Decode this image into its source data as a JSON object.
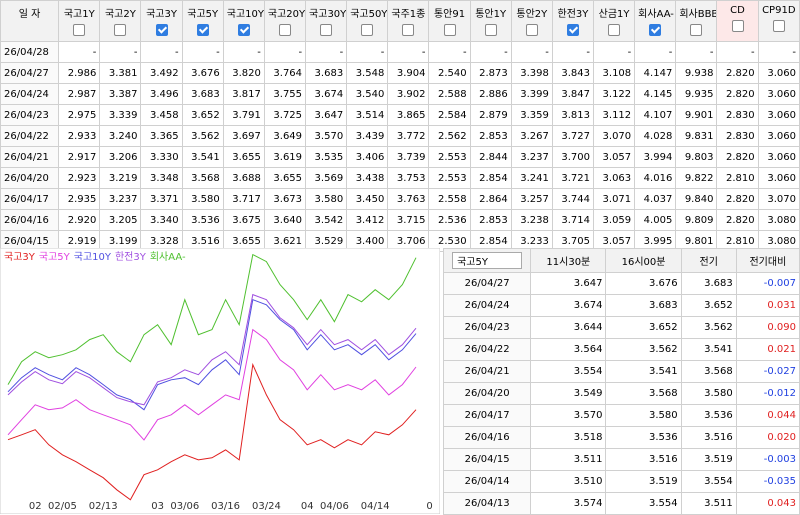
{
  "rate_table": {
    "columns": [
      {
        "label": "일 자"
      },
      {
        "label": "국고1Y",
        "checked": false
      },
      {
        "label": "국고2Y",
        "checked": false
      },
      {
        "label": "국고3Y",
        "checked": true
      },
      {
        "label": "국고5Y",
        "checked": true
      },
      {
        "label": "국고10Y",
        "checked": true
      },
      {
        "label": "국고20Y",
        "checked": false
      },
      {
        "label": "국고30Y",
        "checked": false
      },
      {
        "label": "국고50Y",
        "checked": false
      },
      {
        "label": "국주1종",
        "checked": false
      },
      {
        "label": "통안91",
        "checked": false
      },
      {
        "label": "통안1Y",
        "checked": false
      },
      {
        "label": "통안2Y",
        "checked": false
      },
      {
        "label": "한전3Y",
        "checked": true
      },
      {
        "label": "산금1Y",
        "checked": false
      },
      {
        "label": "회사AA-",
        "checked": true
      },
      {
        "label": "회사BBB-",
        "checked": false
      },
      {
        "label": "CD",
        "checked": false
      },
      {
        "label": "CP91D",
        "checked": false
      }
    ],
    "rows": [
      [
        "26/04/28",
        "-",
        "-",
        "-",
        "-",
        "-",
        "-",
        "-",
        "-",
        "-",
        "-",
        "-",
        "-",
        "-",
        "-",
        "-",
        "-",
        "-",
        "-"
      ],
      [
        "26/04/27",
        "2.986",
        "3.381",
        "3.492",
        "3.676",
        "3.820",
        "3.764",
        "3.683",
        "3.548",
        "3.904",
        "2.540",
        "2.873",
        "3.398",
        "3.843",
        "3.108",
        "4.147",
        "9.938",
        "2.820",
        "3.060"
      ],
      [
        "26/04/24",
        "2.987",
        "3.387",
        "3.496",
        "3.683",
        "3.817",
        "3.755",
        "3.674",
        "3.540",
        "3.902",
        "2.588",
        "2.886",
        "3.399",
        "3.847",
        "3.122",
        "4.145",
        "9.935",
        "2.820",
        "3.060"
      ],
      [
        "26/04/23",
        "2.975",
        "3.339",
        "3.458",
        "3.652",
        "3.791",
        "3.725",
        "3.647",
        "3.514",
        "3.865",
        "2.584",
        "2.879",
        "3.359",
        "3.813",
        "3.112",
        "4.107",
        "9.901",
        "2.830",
        "3.060"
      ],
      [
        "26/04/22",
        "2.933",
        "3.240",
        "3.365",
        "3.562",
        "3.697",
        "3.649",
        "3.570",
        "3.439",
        "3.772",
        "2.562",
        "2.853",
        "3.267",
        "3.727",
        "3.070",
        "4.028",
        "9.831",
        "2.830",
        "3.060"
      ],
      [
        "26/04/21",
        "2.917",
        "3.206",
        "3.330",
        "3.541",
        "3.655",
        "3.619",
        "3.535",
        "3.406",
        "3.739",
        "2.553",
        "2.844",
        "3.237",
        "3.700",
        "3.057",
        "3.994",
        "9.803",
        "2.820",
        "3.060"
      ],
      [
        "26/04/20",
        "2.923",
        "3.219",
        "3.348",
        "3.568",
        "3.688",
        "3.655",
        "3.569",
        "3.438",
        "3.753",
        "2.553",
        "2.854",
        "3.241",
        "3.721",
        "3.063",
        "4.016",
        "9.822",
        "2.810",
        "3.060"
      ],
      [
        "26/04/17",
        "2.935",
        "3.237",
        "3.371",
        "3.580",
        "3.717",
        "3.673",
        "3.580",
        "3.450",
        "3.763",
        "2.558",
        "2.864",
        "3.257",
        "3.744",
        "3.071",
        "4.037",
        "9.840",
        "2.820",
        "3.070"
      ],
      [
        "26/04/16",
        "2.920",
        "3.205",
        "3.340",
        "3.536",
        "3.675",
        "3.640",
        "3.542",
        "3.412",
        "3.715",
        "2.536",
        "2.853",
        "3.238",
        "3.714",
        "3.059",
        "4.005",
        "9.809",
        "2.820",
        "3.080"
      ],
      [
        "26/04/15",
        "2.919",
        "3.199",
        "3.328",
        "3.516",
        "3.655",
        "3.621",
        "3.529",
        "3.400",
        "3.706",
        "2.530",
        "2.854",
        "3.233",
        "3.705",
        "3.057",
        "3.995",
        "9.801",
        "2.810",
        "3.080"
      ]
    ]
  },
  "chart_data": {
    "type": "line",
    "ylim": [
      3.06,
      4.18
    ],
    "categories": [
      null,
      null,
      "02",
      null,
      "02/05",
      null,
      null,
      "02/13",
      null,
      null,
      null,
      "03",
      null,
      "03/06",
      null,
      null,
      "03/16",
      null,
      null,
      "03/24",
      null,
      null,
      "04",
      null,
      "04/06",
      null,
      null,
      "04/14",
      null,
      null,
      null,
      "0"
    ],
    "series": [
      {
        "name": "국고3Y",
        "color": "#e02020",
        "values": [
          3.363,
          3.384,
          3.406,
          3.341,
          3.298,
          3.268,
          3.233,
          3.199,
          3.147,
          3.104,
          3.212,
          3.233,
          3.268,
          3.298,
          3.276,
          3.285,
          3.319,
          3.276,
          3.686,
          3.556,
          3.449,
          3.406,
          3.341,
          3.363,
          3.328,
          3.363,
          3.341,
          3.397,
          3.384,
          3.427,
          3.492,
          null
        ]
      },
      {
        "name": "국고5Y",
        "color": "#e040e0",
        "values": [
          3.384,
          3.449,
          3.513,
          3.492,
          3.5,
          3.535,
          3.492,
          3.47,
          3.449,
          3.427,
          3.362,
          3.449,
          3.47,
          3.513,
          3.47,
          3.513,
          3.556,
          3.535,
          3.837,
          3.794,
          3.707,
          3.664,
          3.578,
          3.643,
          3.578,
          3.6,
          3.578,
          3.621,
          3.556,
          3.6,
          3.676,
          null
        ]
      },
      {
        "name": "국고10Y",
        "color": "#5050e0",
        "values": [
          3.569,
          3.63,
          3.673,
          3.643,
          3.621,
          3.673,
          3.643,
          3.6,
          3.556,
          3.535,
          3.492,
          3.6,
          3.621,
          3.63,
          3.6,
          3.664,
          3.707,
          3.643,
          3.966,
          3.944,
          3.88,
          3.837,
          3.75,
          3.815,
          3.75,
          3.772,
          3.729,
          3.772,
          3.707,
          3.75,
          3.82,
          null
        ]
      },
      {
        "name": "한전3Y",
        "color": "#a050e0",
        "values": [
          3.556,
          3.612,
          3.656,
          3.621,
          3.604,
          3.656,
          3.63,
          3.587,
          3.544,
          3.526,
          3.513,
          3.612,
          3.63,
          3.664,
          3.643,
          3.707,
          3.742,
          3.686,
          3.988,
          3.966,
          3.888,
          3.845,
          3.772,
          3.837,
          3.772,
          3.794,
          3.75,
          3.794,
          3.729,
          3.772,
          3.843,
          null
        ]
      },
      {
        "name": "회사AA-",
        "color": "#50c030",
        "values": [
          3.6,
          3.699,
          3.742,
          3.716,
          3.729,
          3.75,
          3.794,
          3.815,
          3.742,
          3.699,
          3.815,
          3.858,
          3.772,
          3.966,
          3.815,
          3.837,
          3.966,
          3.858,
          4.16,
          4.13,
          4.031,
          3.966,
          3.88,
          3.966,
          3.871,
          3.988,
          3.957,
          4.009,
          3.966,
          4.031,
          4.147,
          null
        ]
      }
    ]
  },
  "detail_table": {
    "selector": "국고5Y",
    "columns": [
      "11시30분",
      "16시00분",
      "전기",
      "전기대비"
    ],
    "rows": [
      [
        "26/04/27",
        "3.647",
        "3.676",
        "3.683",
        "-0.007"
      ],
      [
        "26/04/24",
        "3.674",
        "3.683",
        "3.652",
        "0.031"
      ],
      [
        "26/04/23",
        "3.644",
        "3.652",
        "3.562",
        "0.090"
      ],
      [
        "26/04/22",
        "3.564",
        "3.562",
        "3.541",
        "0.021"
      ],
      [
        "26/04/21",
        "3.554",
        "3.541",
        "3.568",
        "-0.027"
      ],
      [
        "26/04/20",
        "3.549",
        "3.568",
        "3.580",
        "-0.012"
      ],
      [
        "26/04/17",
        "3.570",
        "3.580",
        "3.536",
        "0.044"
      ],
      [
        "26/04/16",
        "3.518",
        "3.536",
        "3.516",
        "0.020"
      ],
      [
        "26/04/15",
        "3.511",
        "3.516",
        "3.519",
        "-0.003"
      ],
      [
        "26/04/14",
        "3.510",
        "3.519",
        "3.554",
        "-0.035"
      ],
      [
        "26/04/13",
        "3.574",
        "3.554",
        "3.511",
        "0.043"
      ]
    ]
  }
}
